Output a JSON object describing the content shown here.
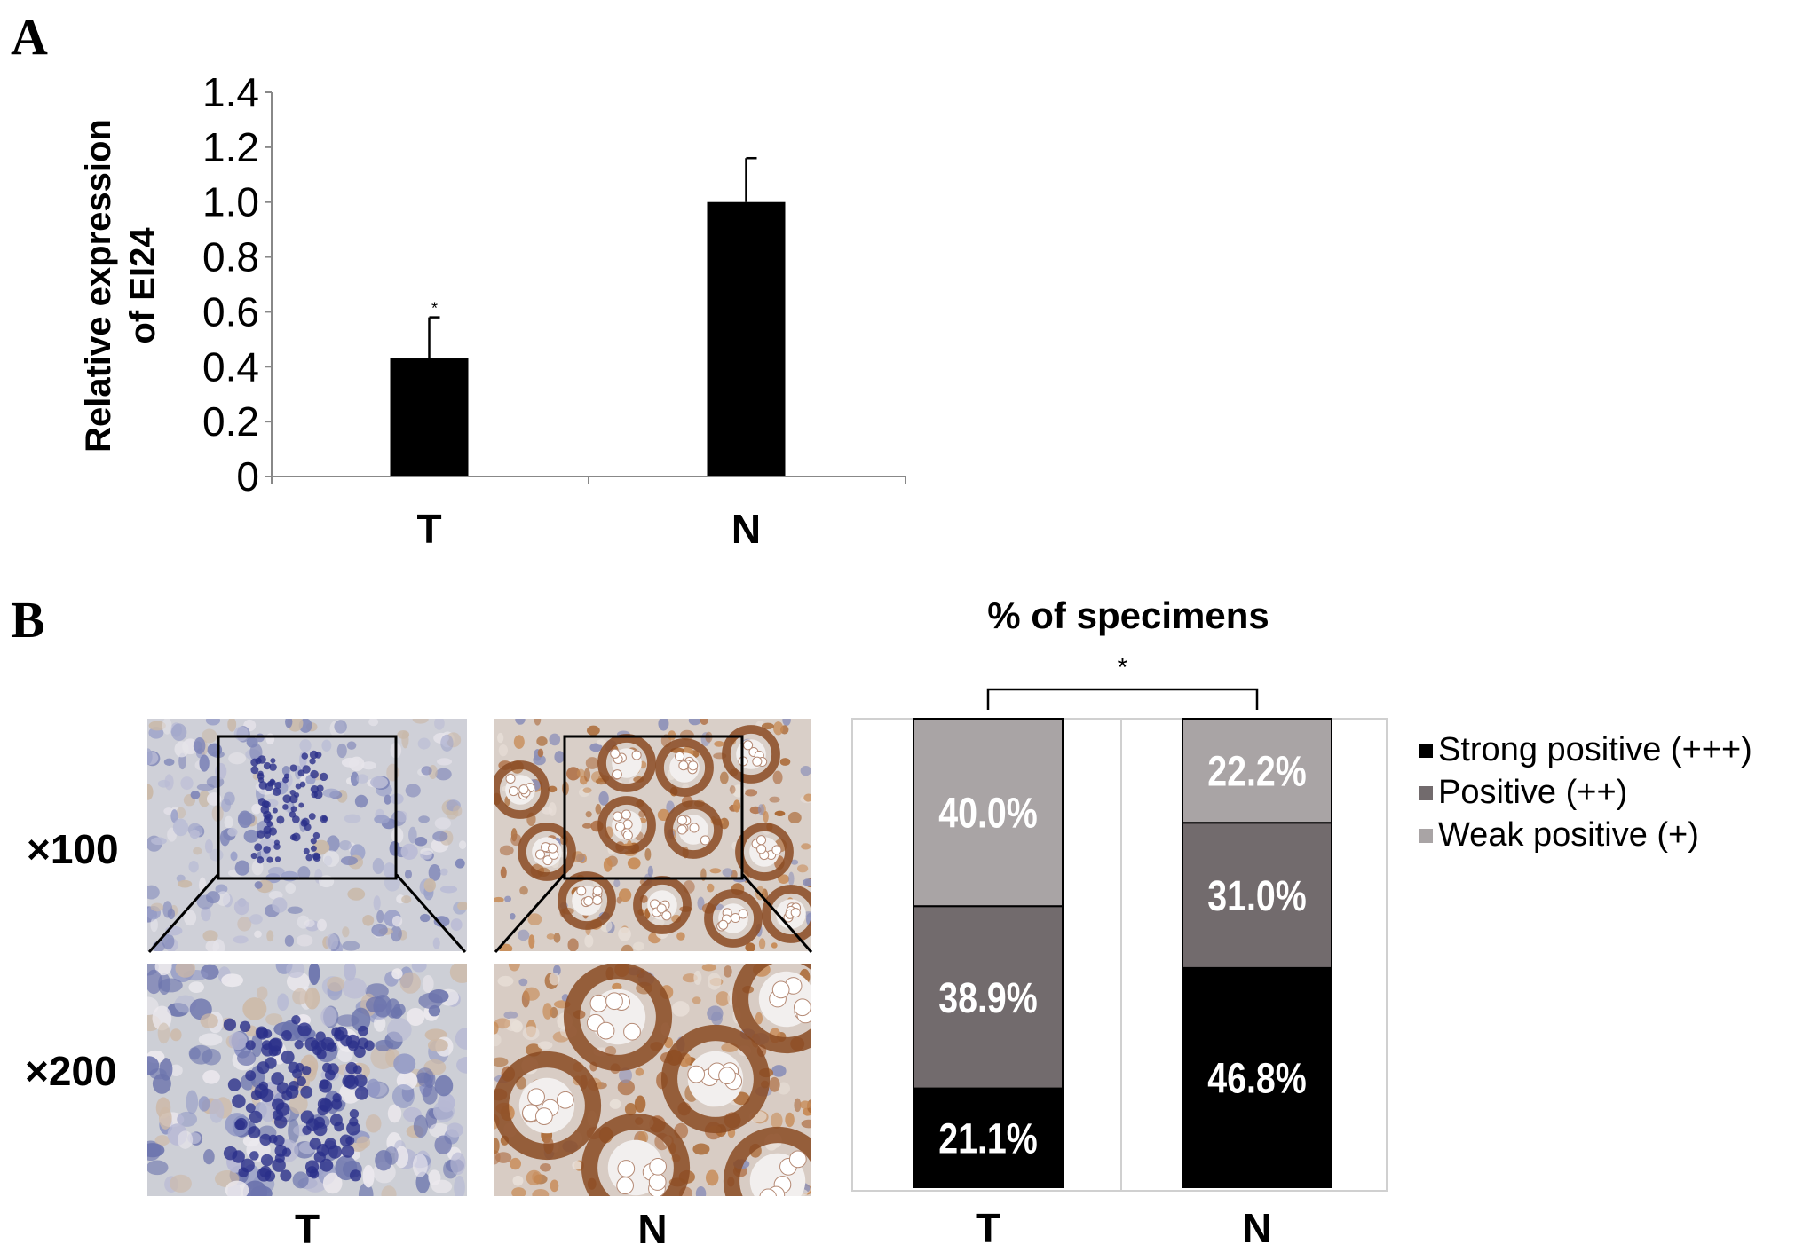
{
  "panels": {
    "a": "A",
    "b": "B"
  },
  "chart_data": [
    {
      "type": "bar",
      "panel": "A",
      "ylabel_line1": "Relative expression",
      "ylabel_line2": "of EI24",
      "ylim": [
        0,
        1.4
      ],
      "ytick_labels": [
        "0",
        "0.2",
        "0.4",
        "0.6",
        "0.8",
        "1.0",
        "1.2",
        "1.4"
      ],
      "yticks": [
        0,
        0.2,
        0.4,
        0.6,
        0.8,
        1.0,
        1.2,
        1.4
      ],
      "categories": [
        "T",
        "N"
      ],
      "values": [
        0.43,
        1.0
      ],
      "errors": [
        0.15,
        0.16
      ],
      "significance": [
        "*",
        ""
      ],
      "grid": false,
      "colors": {
        "bar": "#000000"
      }
    },
    {
      "type": "bar",
      "stacked": true,
      "panel": "B",
      "title": "% of specimens",
      "categories": [
        "T",
        "N"
      ],
      "significance": "*",
      "ylim": [
        0,
        100
      ],
      "series": [
        {
          "name": "Strong positive (+++)",
          "values": [
            21.1,
            46.8
          ],
          "labels": [
            "21.1%",
            "46.8%"
          ],
          "color": "#000000"
        },
        {
          "name": "Positive (++)",
          "values": [
            38.9,
            31.0
          ],
          "labels": [
            "38.9%",
            "31.0%"
          ],
          "color": "#726b6d"
        },
        {
          "name": "Weak positive (+)",
          "values": [
            40.0,
            22.2
          ],
          "labels": [
            "40.0%",
            "22.2%"
          ],
          "color": "#a9a4a5"
        }
      ],
      "legend_position": "right"
    }
  ],
  "micrographs": {
    "magnifications": [
      "×100",
      "×200"
    ],
    "columns": [
      "T",
      "N"
    ]
  }
}
